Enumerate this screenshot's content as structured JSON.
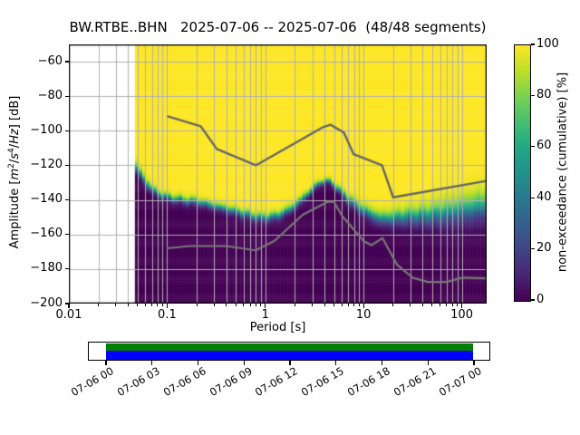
{
  "title": "BW.RTBE..BHN   2025-07-06 -- 2025-07-06  (48/48 segments)",
  "station": "BW.RTBE..BHN",
  "date_range": "2025-07-06 -- 2025-07-06",
  "segments": "48/48 segments",
  "ylabel": {
    "pre": "Amplitude [",
    "m": "m",
    "m_exp": "2",
    "sl1": "/",
    "s": "s",
    "s_exp": "4",
    "sl2": "/",
    "hz": "Hz",
    "post": "] [dB]"
  },
  "chart_data": {
    "type": "heatmap",
    "title": "BW.RTBE..BHN   2025-07-06 -- 2025-07-06  (48/48 segments)",
    "x_axis": {
      "label": "Period [s]",
      "scale": "log",
      "lim": [
        0.01,
        179
      ],
      "tick_values": [
        0.01,
        0.1,
        1,
        10,
        100
      ],
      "tick_labels": [
        "0.01",
        "0.1",
        "1",
        "10",
        "100"
      ],
      "minor_subs": [
        2,
        3,
        4,
        5,
        6,
        7,
        8,
        9
      ]
    },
    "y_axis": {
      "label": "Amplitude [m^2/s^4/Hz] [dB]",
      "lim": [
        -200,
        -50
      ],
      "tick_values": [
        -200,
        -180,
        -160,
        -140,
        -120,
        -100,
        -80,
        -60
      ],
      "grid_values": [
        -180,
        -160,
        -140,
        -120,
        -100,
        -80,
        -60
      ]
    },
    "colorbar": {
      "label": "non-exceedance (cumulative) [%]",
      "lim": [
        0,
        100
      ],
      "tick_values": [
        0,
        20,
        40,
        60,
        80,
        100
      ],
      "colormap": "viridis",
      "stops": [
        [
          0.0,
          "#440154"
        ],
        [
          0.1,
          "#482475"
        ],
        [
          0.2,
          "#414487"
        ],
        [
          0.3,
          "#355f8d"
        ],
        [
          0.4,
          "#2a788e"
        ],
        [
          0.5,
          "#21918c"
        ],
        [
          0.6,
          "#22a884"
        ],
        [
          0.7,
          "#44bf70"
        ],
        [
          0.8,
          "#7ad151"
        ],
        [
          0.9,
          "#bddf26"
        ],
        [
          1.0,
          "#fde725"
        ]
      ]
    },
    "histogram": {
      "description": "cumulative non-exceedance [%] vs period and amplitude; yellow=100% above transition band, dark purple=0% below",
      "data_period_start": 0.047,
      "bins_per_decade": 27,
      "db_bin_width": 1,
      "transition_curve": {
        "periods": [
          0.047,
          0.055,
          0.065,
          0.08,
          0.1,
          0.14,
          0.2,
          0.3,
          0.45,
          0.65,
          0.9,
          1.3,
          1.8,
          2.5,
          3.2,
          4.0,
          5.0,
          6.5,
          8.5,
          11,
          15,
          21,
          30,
          45,
          70,
          110,
          180
        ],
        "mid_db": [
          -119.5,
          -126,
          -132,
          -136.5,
          -138.5,
          -140,
          -141,
          -143.5,
          -146,
          -148.5,
          -150.5,
          -149.5,
          -145.5,
          -138.5,
          -132.5,
          -128.5,
          -131,
          -138,
          -143.5,
          -147.5,
          -151,
          -150.5,
          -149.5,
          -149,
          -147.5,
          -145.5,
          -143
        ],
        "span_db": [
          9,
          9,
          8,
          7,
          7,
          7,
          7,
          7,
          7.5,
          8,
          8,
          8,
          8,
          7,
          6,
          4.5,
          5.5,
          8,
          10,
          11,
          12,
          14,
          16,
          19,
          22,
          24,
          26
        ]
      }
    },
    "noise_models": {
      "nhnm_color": "#666666",
      "nlnm_color": "#787878",
      "nhnm": [
        [
          0.1,
          -91.5
        ],
        [
          0.22,
          -97.4
        ],
        [
          0.32,
          -110.5
        ],
        [
          0.8,
          -120.0
        ],
        [
          3.8,
          -98.1
        ],
        [
          4.6,
          -96.5
        ],
        [
          6.3,
          -101.0
        ],
        [
          7.9,
          -113.5
        ],
        [
          15.4,
          -120.0
        ],
        [
          20.0,
          -138.5
        ],
        [
          179.0,
          -129.0
        ]
      ],
      "nlnm": [
        [
          0.1,
          -168.0
        ],
        [
          0.17,
          -166.7
        ],
        [
          0.4,
          -166.7
        ],
        [
          0.8,
          -169.2
        ],
        [
          1.24,
          -163.7
        ],
        [
          2.4,
          -148.6
        ],
        [
          4.3,
          -141.1
        ],
        [
          5.0,
          -141.1
        ],
        [
          6.0,
          -149.0
        ],
        [
          10.0,
          -163.8
        ],
        [
          12.0,
          -166.2
        ],
        [
          15.6,
          -162.1
        ],
        [
          21.9,
          -177.5
        ],
        [
          31.6,
          -185.0
        ],
        [
          45.0,
          -187.5
        ],
        [
          70.0,
          -187.5
        ],
        [
          101.0,
          -185.0
        ],
        [
          179.0,
          -185.4
        ]
      ]
    },
    "grid_color": "#b0b0b0",
    "timeline": {
      "tick_labels": [
        "07-06 00",
        "07-06 03",
        "07-06 06",
        "07-06 09",
        "07-06 12",
        "07-06 15",
        "07-06 18",
        "07-06 21",
        "07-07 00"
      ],
      "bars": [
        {
          "name": "data availability",
          "color": "#008000"
        },
        {
          "name": "ppsd coverage",
          "color": "#0000ff"
        }
      ]
    }
  }
}
